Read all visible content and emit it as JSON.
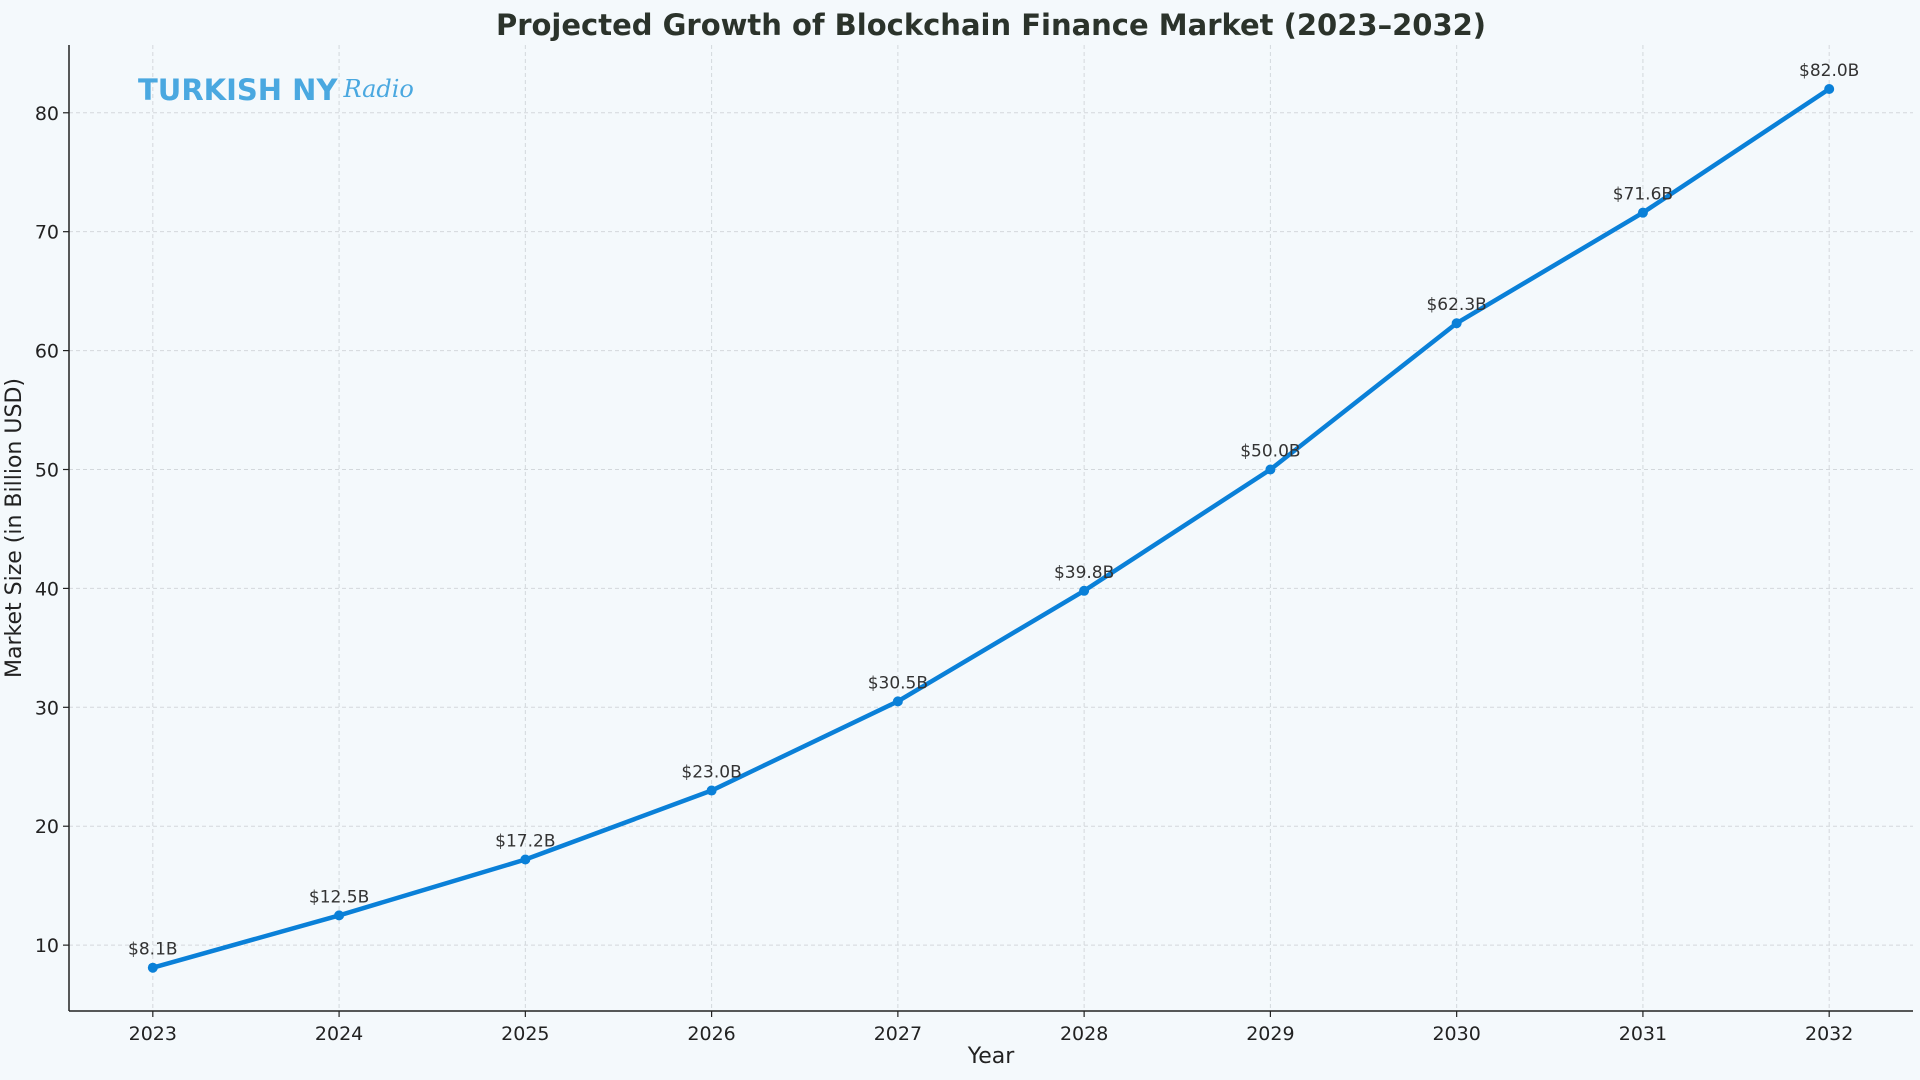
{
  "chart_data": {
    "type": "line",
    "title": "Projected Growth of Blockchain Finance Market (2023–2032)",
    "xlabel": "Year",
    "ylabel": "Market Size (in Billion USD)",
    "x": [
      2023,
      2024,
      2025,
      2026,
      2027,
      2028,
      2029,
      2030,
      2031,
      2032
    ],
    "values": [
      8.1,
      12.5,
      17.2,
      23.0,
      30.5,
      39.8,
      50.0,
      62.3,
      71.6,
      82.0
    ],
    "data_labels": [
      "$8.1B",
      "$12.5B",
      "$17.2B",
      "$23.0B",
      "$30.5B",
      "$39.8B",
      "$50.0B",
      "$62.3B",
      "$71.6B",
      "$82.0B"
    ],
    "xticks": [
      "2023",
      "2024",
      "2025",
      "2026",
      "2027",
      "2028",
      "2029",
      "2030",
      "2031",
      "2032"
    ],
    "yticks": [
      "10",
      "20",
      "30",
      "40",
      "50",
      "60",
      "70",
      "80"
    ],
    "xlim": [
      2022.55,
      2032.45
    ],
    "ylim": [
      4.46,
      85.7
    ],
    "grid": true,
    "line_color": "#0a80d8",
    "background": "#f4f9fc"
  },
  "watermark": {
    "text": "TURKISH NY",
    "script": "Radio",
    "color": "#4aa8e0"
  }
}
